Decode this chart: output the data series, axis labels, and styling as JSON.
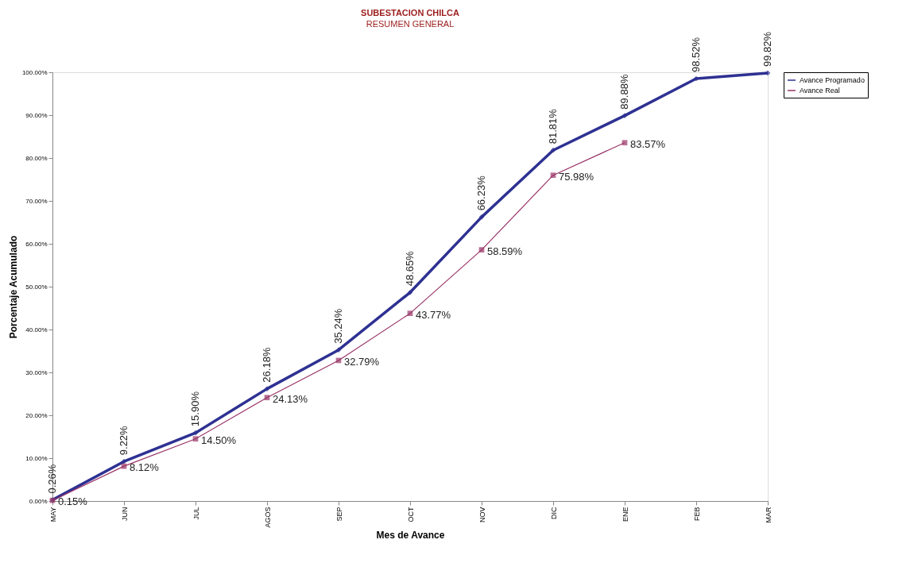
{
  "chart_data": {
    "type": "line",
    "title": "SUBESTACION CHILCA",
    "subtitle": "RESUMEN GENERAL",
    "xlabel": "Mes de Avance",
    "ylabel": "Porcentaje Acumulado",
    "categories": [
      "MAY",
      "JUN",
      "JUL",
      "AGOS",
      "SEP",
      "OCT",
      "NOV",
      "DIC",
      "ENE",
      "FEB",
      "MAR"
    ],
    "ylim": [
      0,
      100
    ],
    "yticks": [
      {
        "value": 0,
        "label": "0.00%"
      },
      {
        "value": 10,
        "label": "10.00%"
      },
      {
        "value": 20,
        "label": "20.00%"
      },
      {
        "value": 30,
        "label": "30.00%"
      },
      {
        "value": 40,
        "label": "40.00%"
      },
      {
        "value": 50,
        "label": "50.00%"
      },
      {
        "value": 60,
        "label": "60.00%"
      },
      {
        "value": 70,
        "label": "70.00%"
      },
      {
        "value": 80,
        "label": "80.00%"
      },
      {
        "value": 90,
        "label": "90.00%"
      },
      {
        "value": 100,
        "label": "100.00%"
      }
    ],
    "grid": false,
    "legend": "right",
    "line_style": "solid",
    "series": [
      {
        "name": "Avance Programado",
        "color": "#2e3192",
        "marker": "diamond",
        "values": [
          0.26,
          9.22,
          15.9,
          26.18,
          35.24,
          48.65,
          66.23,
          81.81,
          89.88,
          98.52,
          99.82
        ],
        "value_labels": [
          "0.26%",
          "9.22%",
          "15.90%",
          "26.18%",
          "35.24%",
          "48.65%",
          "66.23%",
          "81.81%",
          "89.88%",
          "98.52%",
          "99.82%"
        ]
      },
      {
        "name": "Avance Real",
        "color": "#993366",
        "marker": "square",
        "values": [
          0.15,
          8.12,
          14.5,
          24.13,
          32.79,
          43.77,
          58.59,
          75.98,
          83.57,
          null,
          null
        ],
        "value_labels": [
          "0.15%",
          "8.12%",
          "14.50%",
          "24.13%",
          "32.79%",
          "43.77%",
          "58.59%",
          "75.98%",
          "83.57%",
          null,
          null
        ]
      }
    ]
  }
}
